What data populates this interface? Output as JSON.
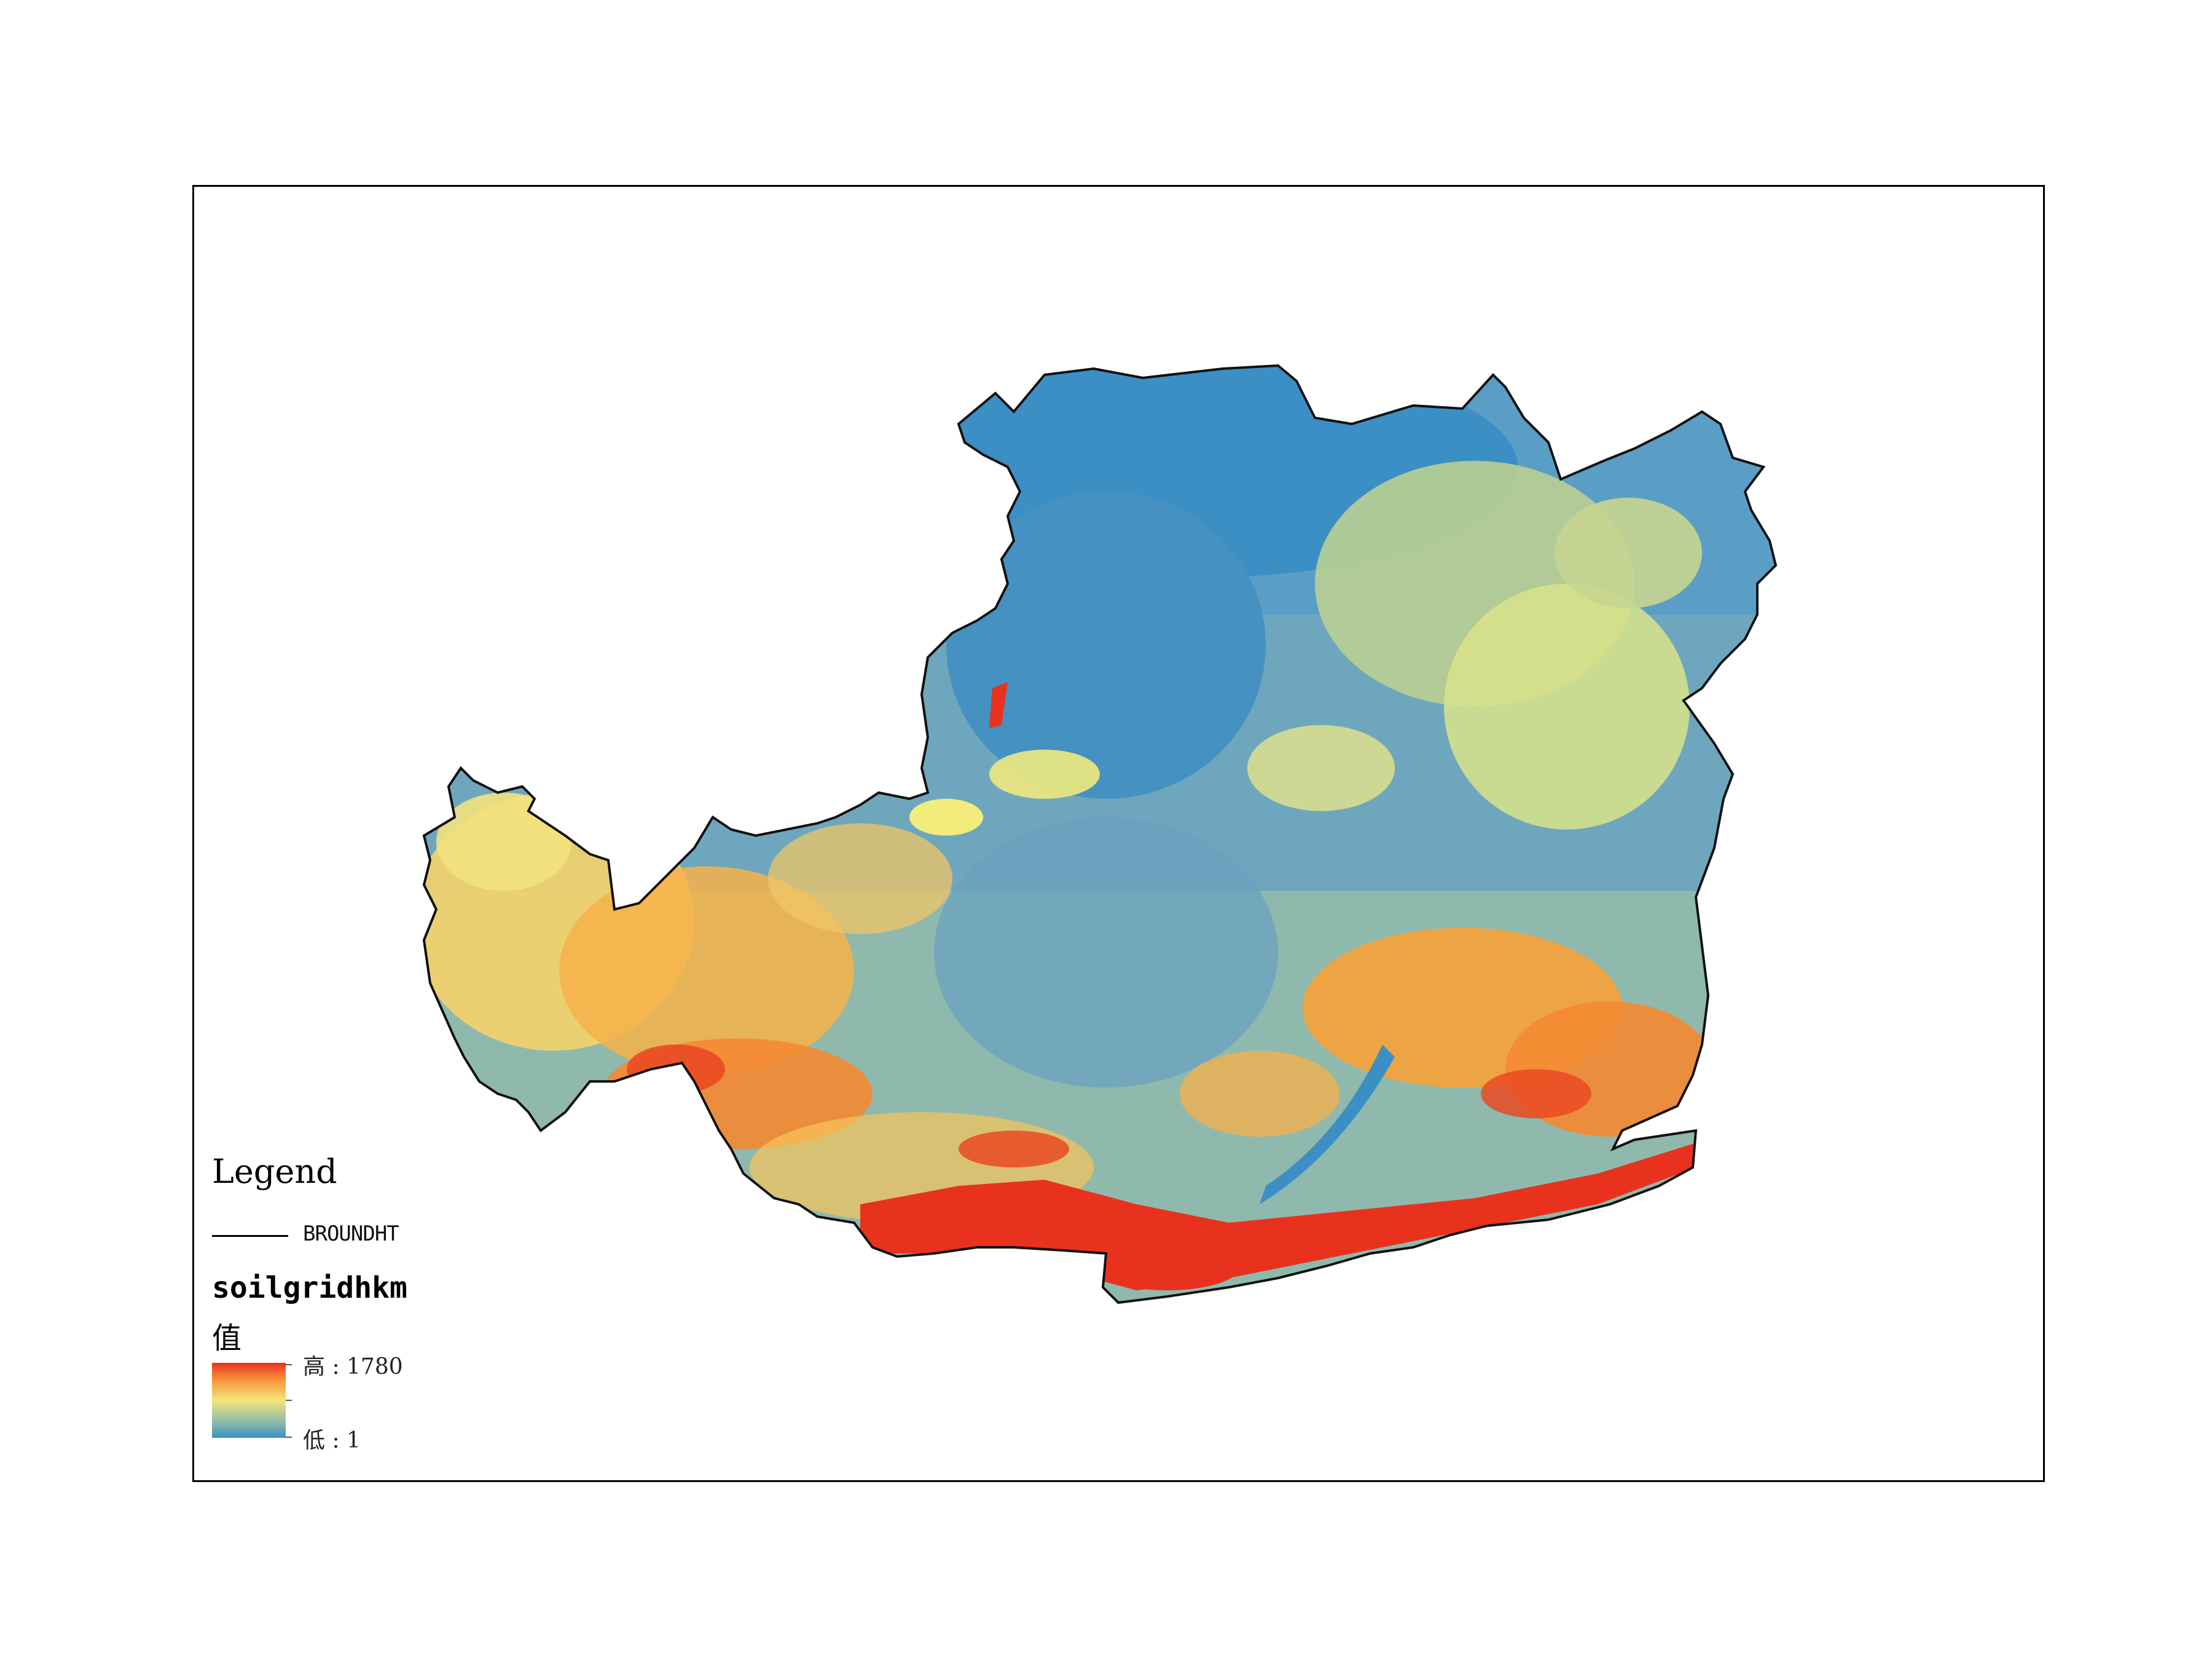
{
  "legend": {
    "title": "Legend",
    "boundary_layer": "BROUNDHT",
    "raster_layer": "soilgridhkm",
    "field": "值",
    "high_label": "高 : 1780",
    "low_label": "低 : 1",
    "ramp_colors": [
      "#e8321e",
      "#f8903a",
      "#f5e57a",
      "#9cc2a4",
      "#3c8fc4"
    ]
  },
  "map": {
    "region_colors": {
      "blue": "#3c8fc4",
      "blue_green": "#6ea7bd",
      "grey_green": "#9cc2a4",
      "yellow": "#f2ec7c",
      "orange": "#f8a23a",
      "red": "#e8321e"
    }
  }
}
